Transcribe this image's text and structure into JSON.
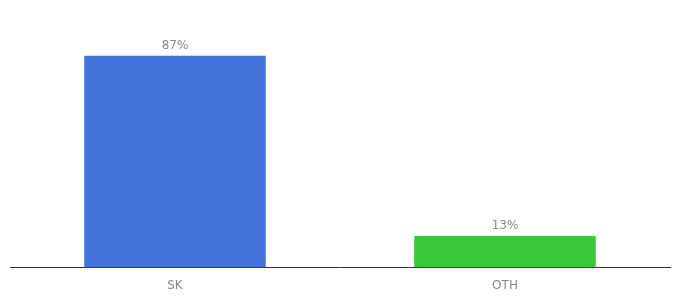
{
  "chart_data": {
    "type": "bar",
    "categories": [
      "SK",
      "OTH"
    ],
    "values": [
      87,
      13
    ],
    "value_labels": [
      "87%",
      "13%"
    ],
    "colors": [
      "#4472db",
      "#3ac73a"
    ],
    "ylim": [
      0,
      100
    ],
    "data_labels": true,
    "tick_labels": "x",
    "grid": false
  }
}
